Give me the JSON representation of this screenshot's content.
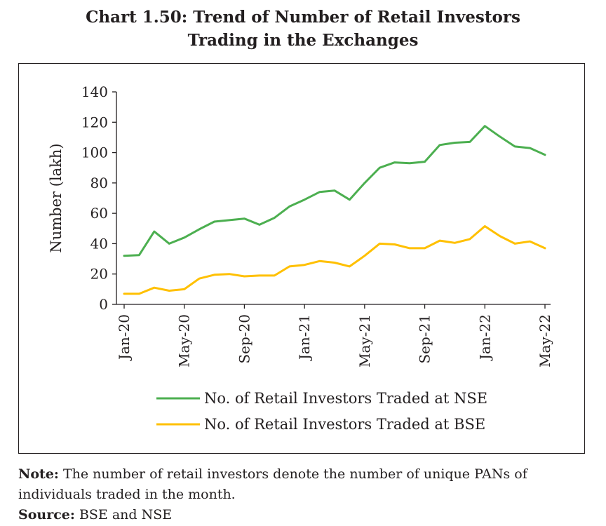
{
  "title_line1": "Chart 1.50:  Trend of Number of Retail Investors",
  "title_line2": "Trading in the Exchanges",
  "note_label": "Note:",
  "note_text": "The number of retail investors denote the number of unique PANs of individuals traded in the month.",
  "source_label": "Source:",
  "source_text": "BSE and NSE",
  "chart_data": {
    "type": "line",
    "ylabel": "Number (lakh)",
    "ylim": [
      0,
      140
    ],
    "yticks": [
      0,
      20,
      40,
      60,
      80,
      100,
      120,
      140
    ],
    "x": [
      "Jan-20",
      "Feb-20",
      "Mar-20",
      "Apr-20",
      "May-20",
      "Jun-20",
      "Jul-20",
      "Aug-20",
      "Sep-20",
      "Oct-20",
      "Nov-20",
      "Dec-20",
      "Jan-21",
      "Feb-21",
      "Mar-21",
      "Apr-21",
      "May-21",
      "Jun-21",
      "Jul-21",
      "Aug-21",
      "Sep-21",
      "Oct-21",
      "Nov-21",
      "Dec-21",
      "Jan-22",
      "Feb-22",
      "Mar-22",
      "Apr-22",
      "May-22"
    ],
    "xtick_labels": [
      "Jan-20",
      "May-20",
      "Sep-20",
      "Jan-21",
      "May-21",
      "Sep-21",
      "Jan-22",
      "May-22"
    ],
    "series": [
      {
        "name": "No. of Retail Investors Traded at NSE",
        "color": "#4caf50",
        "values": [
          32,
          32.5,
          48,
          40,
          44,
          49.5,
          54.5,
          55.5,
          56.5,
          52.5,
          57,
          64.5,
          69,
          74,
          75,
          69,
          80,
          90,
          93.5,
          93,
          94,
          105,
          106.5,
          107,
          117.5,
          110.5,
          104,
          103,
          98.5
        ]
      },
      {
        "name": "No. of Retail Investors Traded at BSE",
        "color": "#ffc000",
        "values": [
          7,
          7,
          11,
          9,
          10,
          17,
          19.5,
          20,
          18.5,
          19,
          19,
          25,
          26,
          28.5,
          27.5,
          25,
          32,
          40,
          39.5,
          37,
          37,
          42,
          40.5,
          43,
          51.5,
          45,
          40,
          41.5,
          37
        ]
      }
    ],
    "legend_position": "bottom"
  }
}
